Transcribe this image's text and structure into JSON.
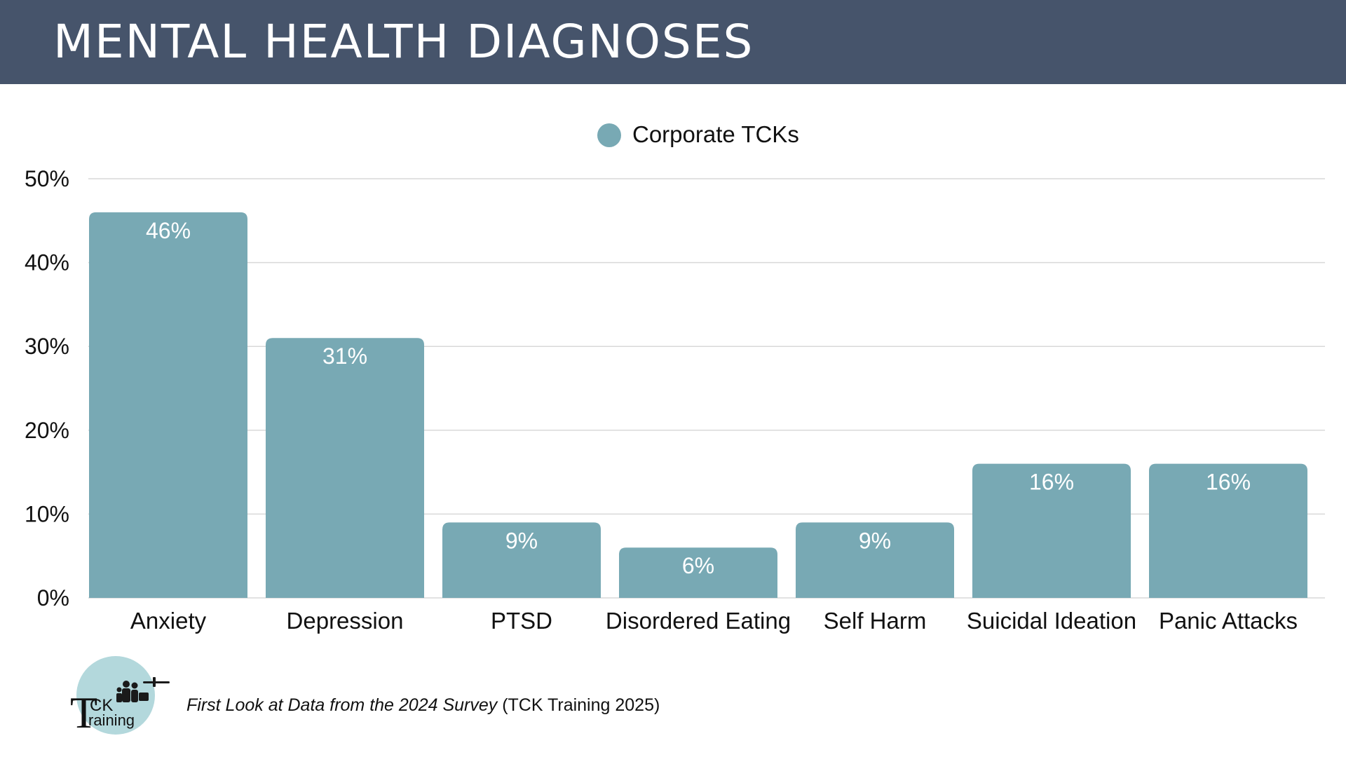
{
  "title": "MENTAL HEALTH DIAGNOSES",
  "colors": {
    "header": "#46546b",
    "bar": "#78a9b4",
    "gridline": "#d9d9d9",
    "logo_circle": "#b3d8dc"
  },
  "footer": {
    "source_italic": "First Look at Data from the 2024 Survey",
    "source_plain": " (TCK Training 2025)",
    "logo_text_top": "CK",
    "logo_text_bottom": "raining",
    "logo_letter": "T"
  },
  "chart_data": {
    "type": "bar",
    "categories": [
      "Anxiety",
      "Depression",
      "PTSD",
      "Disordered Eating",
      "Self Harm",
      "Suicidal Ideation",
      "Panic Attacks"
    ],
    "series": [
      {
        "name": "Corporate TCKs",
        "values": [
          46,
          31,
          9,
          6,
          9,
          16,
          16
        ],
        "labels": [
          "46%",
          "31%",
          "9%",
          "6%",
          "9%",
          "16%",
          "16%"
        ]
      }
    ],
    "ylim": [
      0,
      50
    ],
    "yticks": [
      0,
      10,
      20,
      30,
      40,
      50
    ],
    "ytick_labels": [
      "0%",
      "10%",
      "20%",
      "30%",
      "40%",
      "50%"
    ],
    "grid": true,
    "legend_position": "top-center"
  }
}
